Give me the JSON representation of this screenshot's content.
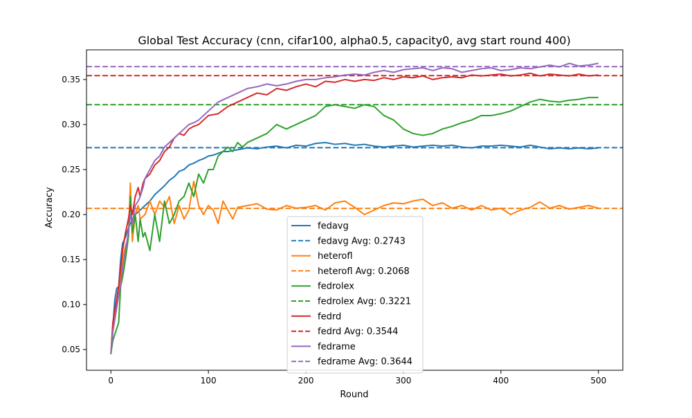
{
  "chart_data": {
    "type": "line",
    "title": "Global Test Accuracy (cnn, cifar100, alpha0.5, capacity0, avg start round 400)",
    "xlabel": "Round",
    "ylabel": "Accuracy",
    "xlim": [
      -25,
      525
    ],
    "ylim": [
      0.027,
      0.383
    ],
    "xticks": [
      0,
      100,
      200,
      300,
      400,
      500
    ],
    "yticks": [
      0.05,
      0.1,
      0.15,
      0.2,
      0.25,
      0.3,
      0.35
    ],
    "ytick_labels": [
      "0.05",
      "0.10",
      "0.15",
      "0.20",
      "0.25",
      "0.30",
      "0.35"
    ],
    "grid": false,
    "legend_position": "lower-center",
    "series": [
      {
        "name": "fedavg",
        "color": "#1f77b4",
        "x": [
          0,
          2,
          4,
          6,
          8,
          10,
          12,
          15,
          18,
          20,
          25,
          30,
          35,
          40,
          45,
          50,
          55,
          60,
          65,
          70,
          75,
          80,
          85,
          90,
          95,
          100,
          105,
          110,
          115,
          120,
          130,
          140,
          150,
          160,
          170,
          180,
          190,
          200,
          210,
          220,
          230,
          240,
          250,
          260,
          270,
          280,
          290,
          300,
          310,
          320,
          330,
          340,
          350,
          360,
          370,
          380,
          390,
          400,
          410,
          420,
          430,
          440,
          450,
          460,
          470,
          480,
          490,
          500
        ],
        "y": [
          0.045,
          0.075,
          0.105,
          0.118,
          0.12,
          0.15,
          0.168,
          0.175,
          0.185,
          0.19,
          0.2,
          0.205,
          0.21,
          0.215,
          0.222,
          0.227,
          0.232,
          0.238,
          0.242,
          0.248,
          0.25,
          0.255,
          0.257,
          0.26,
          0.262,
          0.265,
          0.266,
          0.268,
          0.27,
          0.27,
          0.272,
          0.274,
          0.273,
          0.275,
          0.276,
          0.274,
          0.277,
          0.276,
          0.279,
          0.28,
          0.278,
          0.279,
          0.277,
          0.278,
          0.276,
          0.275,
          0.276,
          0.277,
          0.275,
          0.276,
          0.277,
          0.276,
          0.277,
          0.275,
          0.274,
          0.276,
          0.276,
          0.277,
          0.276,
          0.275,
          0.277,
          0.275,
          0.273,
          0.274,
          0.273,
          0.274,
          0.273,
          0.274
        ]
      },
      {
        "name": "fedavg Avg: 0.2743",
        "color": "#1f77b4",
        "dashed": true,
        "value": 0.2743
      },
      {
        "name": "heterofl",
        "color": "#ff7f0e",
        "x": [
          0,
          2,
          5,
          8,
          10,
          12,
          15,
          18,
          20,
          22,
          25,
          28,
          30,
          35,
          40,
          45,
          50,
          55,
          60,
          65,
          70,
          75,
          80,
          85,
          90,
          95,
          100,
          105,
          110,
          115,
          120,
          125,
          130,
          140,
          150,
          160,
          170,
          180,
          190,
          200,
          210,
          220,
          230,
          240,
          250,
          260,
          270,
          280,
          290,
          300,
          310,
          320,
          330,
          340,
          350,
          360,
          370,
          380,
          390,
          400,
          410,
          420,
          430,
          440,
          450,
          460,
          470,
          480,
          490,
          500
        ],
        "y": [
          0.045,
          0.07,
          0.09,
          0.11,
          0.13,
          0.15,
          0.165,
          0.175,
          0.235,
          0.17,
          0.2,
          0.21,
          0.195,
          0.2,
          0.215,
          0.2,
          0.215,
          0.208,
          0.22,
          0.19,
          0.21,
          0.195,
          0.205,
          0.237,
          0.21,
          0.2,
          0.21,
          0.205,
          0.19,
          0.215,
          0.205,
          0.195,
          0.208,
          0.21,
          0.212,
          0.206,
          0.205,
          0.21,
          0.207,
          0.208,
          0.21,
          0.205,
          0.213,
          0.215,
          0.208,
          0.2,
          0.205,
          0.21,
          0.213,
          0.212,
          0.215,
          0.217,
          0.21,
          0.213,
          0.207,
          0.21,
          0.205,
          0.21,
          0.205,
          0.207,
          0.2,
          0.205,
          0.208,
          0.214,
          0.207,
          0.21,
          0.206,
          0.208,
          0.21,
          0.207
        ]
      },
      {
        "name": "heterofl Avg: 0.2068",
        "color": "#ff7f0e",
        "dashed": true,
        "value": 0.2068
      },
      {
        "name": "fedrolex",
        "color": "#2ca02c",
        "x": [
          0,
          2,
          5,
          8,
          10,
          12,
          15,
          18,
          20,
          22,
          25,
          28,
          30,
          33,
          35,
          40,
          45,
          50,
          55,
          60,
          65,
          70,
          75,
          80,
          85,
          90,
          95,
          100,
          105,
          110,
          115,
          120,
          125,
          130,
          135,
          140,
          150,
          160,
          170,
          180,
          190,
          200,
          210,
          220,
          230,
          240,
          250,
          260,
          270,
          280,
          290,
          300,
          310,
          320,
          330,
          340,
          350,
          360,
          370,
          380,
          390,
          400,
          410,
          420,
          430,
          440,
          450,
          460,
          470,
          480,
          490,
          500
        ],
        "y": [
          0.045,
          0.06,
          0.07,
          0.08,
          0.12,
          0.13,
          0.15,
          0.175,
          0.22,
          0.18,
          0.2,
          0.17,
          0.195,
          0.175,
          0.18,
          0.16,
          0.2,
          0.17,
          0.215,
          0.19,
          0.2,
          0.215,
          0.22,
          0.235,
          0.22,
          0.245,
          0.235,
          0.25,
          0.25,
          0.265,
          0.27,
          0.275,
          0.27,
          0.28,
          0.275,
          0.28,
          0.285,
          0.29,
          0.3,
          0.295,
          0.3,
          0.305,
          0.31,
          0.32,
          0.322,
          0.32,
          0.318,
          0.322,
          0.32,
          0.31,
          0.305,
          0.295,
          0.29,
          0.288,
          0.29,
          0.295,
          0.298,
          0.302,
          0.305,
          0.31,
          0.31,
          0.312,
          0.315,
          0.32,
          0.325,
          0.328,
          0.326,
          0.325,
          0.327,
          0.328,
          0.33,
          0.33
        ]
      },
      {
        "name": "fedrolex Avg: 0.3221",
        "color": "#2ca02c",
        "dashed": true,
        "value": 0.3221
      },
      {
        "name": "fedrd",
        "color": "#d62728",
        "x": [
          0,
          2,
          5,
          8,
          10,
          12,
          15,
          18,
          20,
          22,
          25,
          28,
          30,
          33,
          35,
          40,
          45,
          50,
          55,
          60,
          65,
          70,
          75,
          80,
          85,
          90,
          95,
          100,
          110,
          120,
          130,
          140,
          150,
          160,
          170,
          180,
          190,
          200,
          210,
          220,
          230,
          240,
          250,
          260,
          270,
          280,
          290,
          300,
          310,
          320,
          330,
          340,
          350,
          360,
          370,
          380,
          390,
          400,
          410,
          420,
          430,
          440,
          450,
          460,
          470,
          480,
          490,
          500
        ],
        "y": [
          0.045,
          0.08,
          0.1,
          0.12,
          0.14,
          0.16,
          0.18,
          0.195,
          0.21,
          0.2,
          0.22,
          0.23,
          0.22,
          0.235,
          0.24,
          0.245,
          0.255,
          0.26,
          0.27,
          0.275,
          0.285,
          0.29,
          0.288,
          0.295,
          0.298,
          0.3,
          0.305,
          0.31,
          0.312,
          0.32,
          0.325,
          0.33,
          0.335,
          0.333,
          0.34,
          0.338,
          0.342,
          0.345,
          0.342,
          0.348,
          0.347,
          0.35,
          0.348,
          0.35,
          0.349,
          0.352,
          0.35,
          0.353,
          0.352,
          0.354,
          0.35,
          0.352,
          0.353,
          0.352,
          0.355,
          0.354,
          0.355,
          0.356,
          0.354,
          0.355,
          0.357,
          0.354,
          0.356,
          0.355,
          0.354,
          0.356,
          0.354,
          0.355
        ]
      },
      {
        "name": "fedrd Avg: 0.3544",
        "color": "#d62728",
        "dashed": true,
        "value": 0.3544
      },
      {
        "name": "fedrame",
        "color": "#9467bd",
        "x": [
          0,
          2,
          5,
          8,
          10,
          12,
          15,
          18,
          20,
          22,
          25,
          28,
          30,
          33,
          35,
          40,
          45,
          50,
          55,
          60,
          65,
          70,
          75,
          80,
          85,
          90,
          95,
          100,
          110,
          120,
          130,
          140,
          150,
          160,
          170,
          180,
          190,
          200,
          210,
          220,
          230,
          240,
          250,
          260,
          270,
          280,
          290,
          300,
          310,
          320,
          330,
          340,
          350,
          360,
          370,
          380,
          390,
          400,
          410,
          420,
          430,
          440,
          450,
          460,
          470,
          480,
          490,
          500
        ],
        "y": [
          0.045,
          0.07,
          0.09,
          0.11,
          0.12,
          0.14,
          0.16,
          0.18,
          0.2,
          0.19,
          0.21,
          0.215,
          0.22,
          0.23,
          0.24,
          0.25,
          0.26,
          0.265,
          0.275,
          0.28,
          0.285,
          0.29,
          0.295,
          0.3,
          0.302,
          0.305,
          0.31,
          0.315,
          0.325,
          0.33,
          0.335,
          0.34,
          0.342,
          0.345,
          0.343,
          0.345,
          0.348,
          0.35,
          0.35,
          0.352,
          0.353,
          0.355,
          0.356,
          0.355,
          0.358,
          0.36,
          0.358,
          0.361,
          0.362,
          0.363,
          0.36,
          0.363,
          0.362,
          0.358,
          0.36,
          0.362,
          0.363,
          0.36,
          0.361,
          0.363,
          0.362,
          0.364,
          0.366,
          0.364,
          0.368,
          0.365,
          0.366,
          0.368
        ]
      },
      {
        "name": "fedrame Avg: 0.3644",
        "color": "#9467bd",
        "dashed": true,
        "value": 0.3644
      }
    ]
  }
}
